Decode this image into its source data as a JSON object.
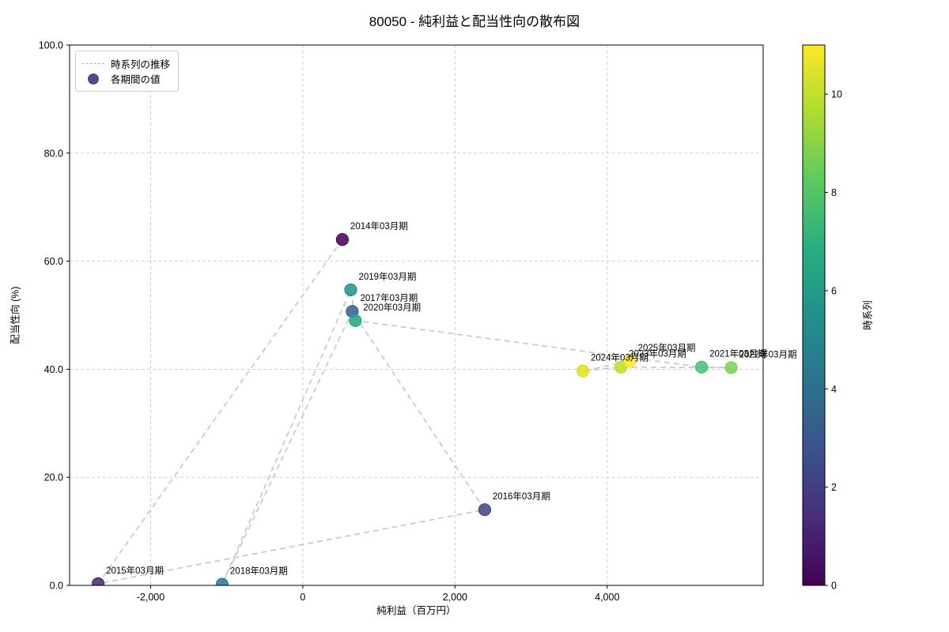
{
  "chart_data": {
    "type": "scatter",
    "title": "80050 - 純利益と配当性向の散布図",
    "xlabel": "純利益（百万円）",
    "ylabel": "配当性向 (%)",
    "xlim": [
      -3065,
      6050
    ],
    "ylim": [
      0,
      100
    ],
    "grid": true,
    "xticks": [
      {
        "v": -2000,
        "label": "-2,000"
      },
      {
        "v": 0,
        "label": "0"
      },
      {
        "v": 2000,
        "label": "2,000"
      },
      {
        "v": 4000,
        "label": "4,000"
      }
    ],
    "yticks": [
      {
        "v": 0,
        "label": "0.0"
      },
      {
        "v": 20,
        "label": "20.0"
      },
      {
        "v": 40,
        "label": "40.0"
      },
      {
        "v": 60,
        "label": "60.0"
      },
      {
        "v": 80,
        "label": "80.0"
      },
      {
        "v": 100,
        "label": "100.0"
      }
    ],
    "legend": {
      "position": "upper-left",
      "line_label": "時系列の推移",
      "marker_label": "各期間の値",
      "marker_color": "#46327e"
    },
    "colorbar": {
      "label": "時系列",
      "min": 0,
      "max": 11,
      "ticks": [
        0,
        2,
        4,
        6,
        8,
        10
      ],
      "stops": [
        "#440154",
        "#472d7b",
        "#3b528b",
        "#2c728e",
        "#21918c",
        "#28ae80",
        "#5ec962",
        "#addc30",
        "#fde725"
      ]
    },
    "points": [
      {
        "label": "2014年03月期",
        "x": 520,
        "y": 64.0,
        "t": 0,
        "color": "#440154"
      },
      {
        "label": "2015年03月期",
        "x": -2690,
        "y": 0.3,
        "t": 1,
        "color": "#482475"
      },
      {
        "label": "2016年03月期",
        "x": 2390,
        "y": 14.0,
        "t": 2,
        "color": "#414487"
      },
      {
        "label": "2017年03月期",
        "x": 650,
        "y": 50.7,
        "t": 3,
        "color": "#355f8d"
      },
      {
        "label": "2018年03月期",
        "x": -1060,
        "y": 0.2,
        "t": 4,
        "color": "#2a788e"
      },
      {
        "label": "2019年03月期",
        "x": 630,
        "y": 54.7,
        "t": 5,
        "color": "#21918c"
      },
      {
        "label": "2020年03月期",
        "x": 690,
        "y": 49.0,
        "t": 6,
        "color": "#22a884"
      },
      {
        "label": "2021年03月期",
        "x": 5240,
        "y": 40.4,
        "t": 7,
        "color": "#44bf70"
      },
      {
        "label": "2022年03月期",
        "x": 5630,
        "y": 40.3,
        "t": 8,
        "color": "#7ad151"
      },
      {
        "label": "2023年03月期",
        "x": 4180,
        "y": 40.4,
        "t": 9,
        "color": "#bddf26"
      },
      {
        "label": "2024年03月期",
        "x": 3680,
        "y": 39.7,
        "t": 10,
        "color": "#dde318"
      },
      {
        "label": "2025年03月期",
        "x": 4300,
        "y": 41.5,
        "t": 11,
        "color": "#fde725"
      }
    ]
  }
}
